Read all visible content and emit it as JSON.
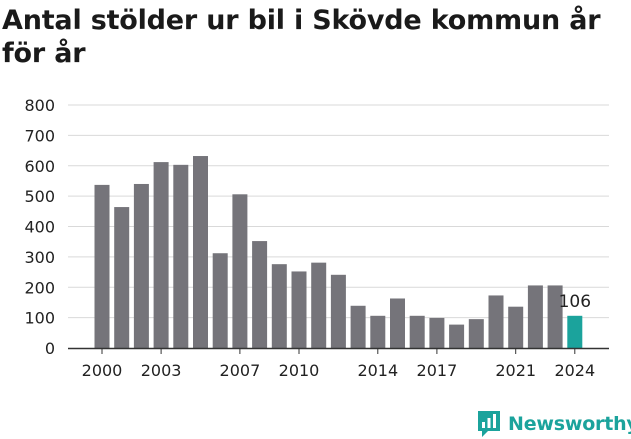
{
  "chart_data": {
    "type": "bar",
    "title": "Antal stölder ur bil i Skövde kommun år för år",
    "xlabel": "",
    "ylabel": "",
    "categories": [
      "2000",
      "2001",
      "2002",
      "2003",
      "2004",
      "2005",
      "2006",
      "2007",
      "2008",
      "2009",
      "2010",
      "2011",
      "2012",
      "2013",
      "2014",
      "2015",
      "2016",
      "2017",
      "2018",
      "2019",
      "2020",
      "2021",
      "2022",
      "2023",
      "2024"
    ],
    "values": [
      537,
      464,
      540,
      612,
      603,
      632,
      312,
      506,
      352,
      276,
      252,
      281,
      241,
      139,
      106,
      163,
      106,
      99,
      77,
      95,
      173,
      136,
      206,
      206,
      106
    ],
    "ylim": [
      0,
      800
    ],
    "yticks": [
      0,
      100,
      200,
      300,
      400,
      500,
      600,
      700,
      800
    ],
    "xtick_labels": [
      "2000",
      "2003",
      "2007",
      "2010",
      "2014",
      "2017",
      "2021",
      "2024"
    ],
    "highlight": {
      "category": "2024",
      "label": "106"
    },
    "grid": true,
    "colors": {
      "bar": "#75747a",
      "highlight": "#1ba39c",
      "grid": "#d9d9d9",
      "axis": "#333333"
    }
  },
  "brand": {
    "name": "Newsworthy",
    "icon": "newsworthy-logo-icon",
    "color": "#1ba39c"
  }
}
